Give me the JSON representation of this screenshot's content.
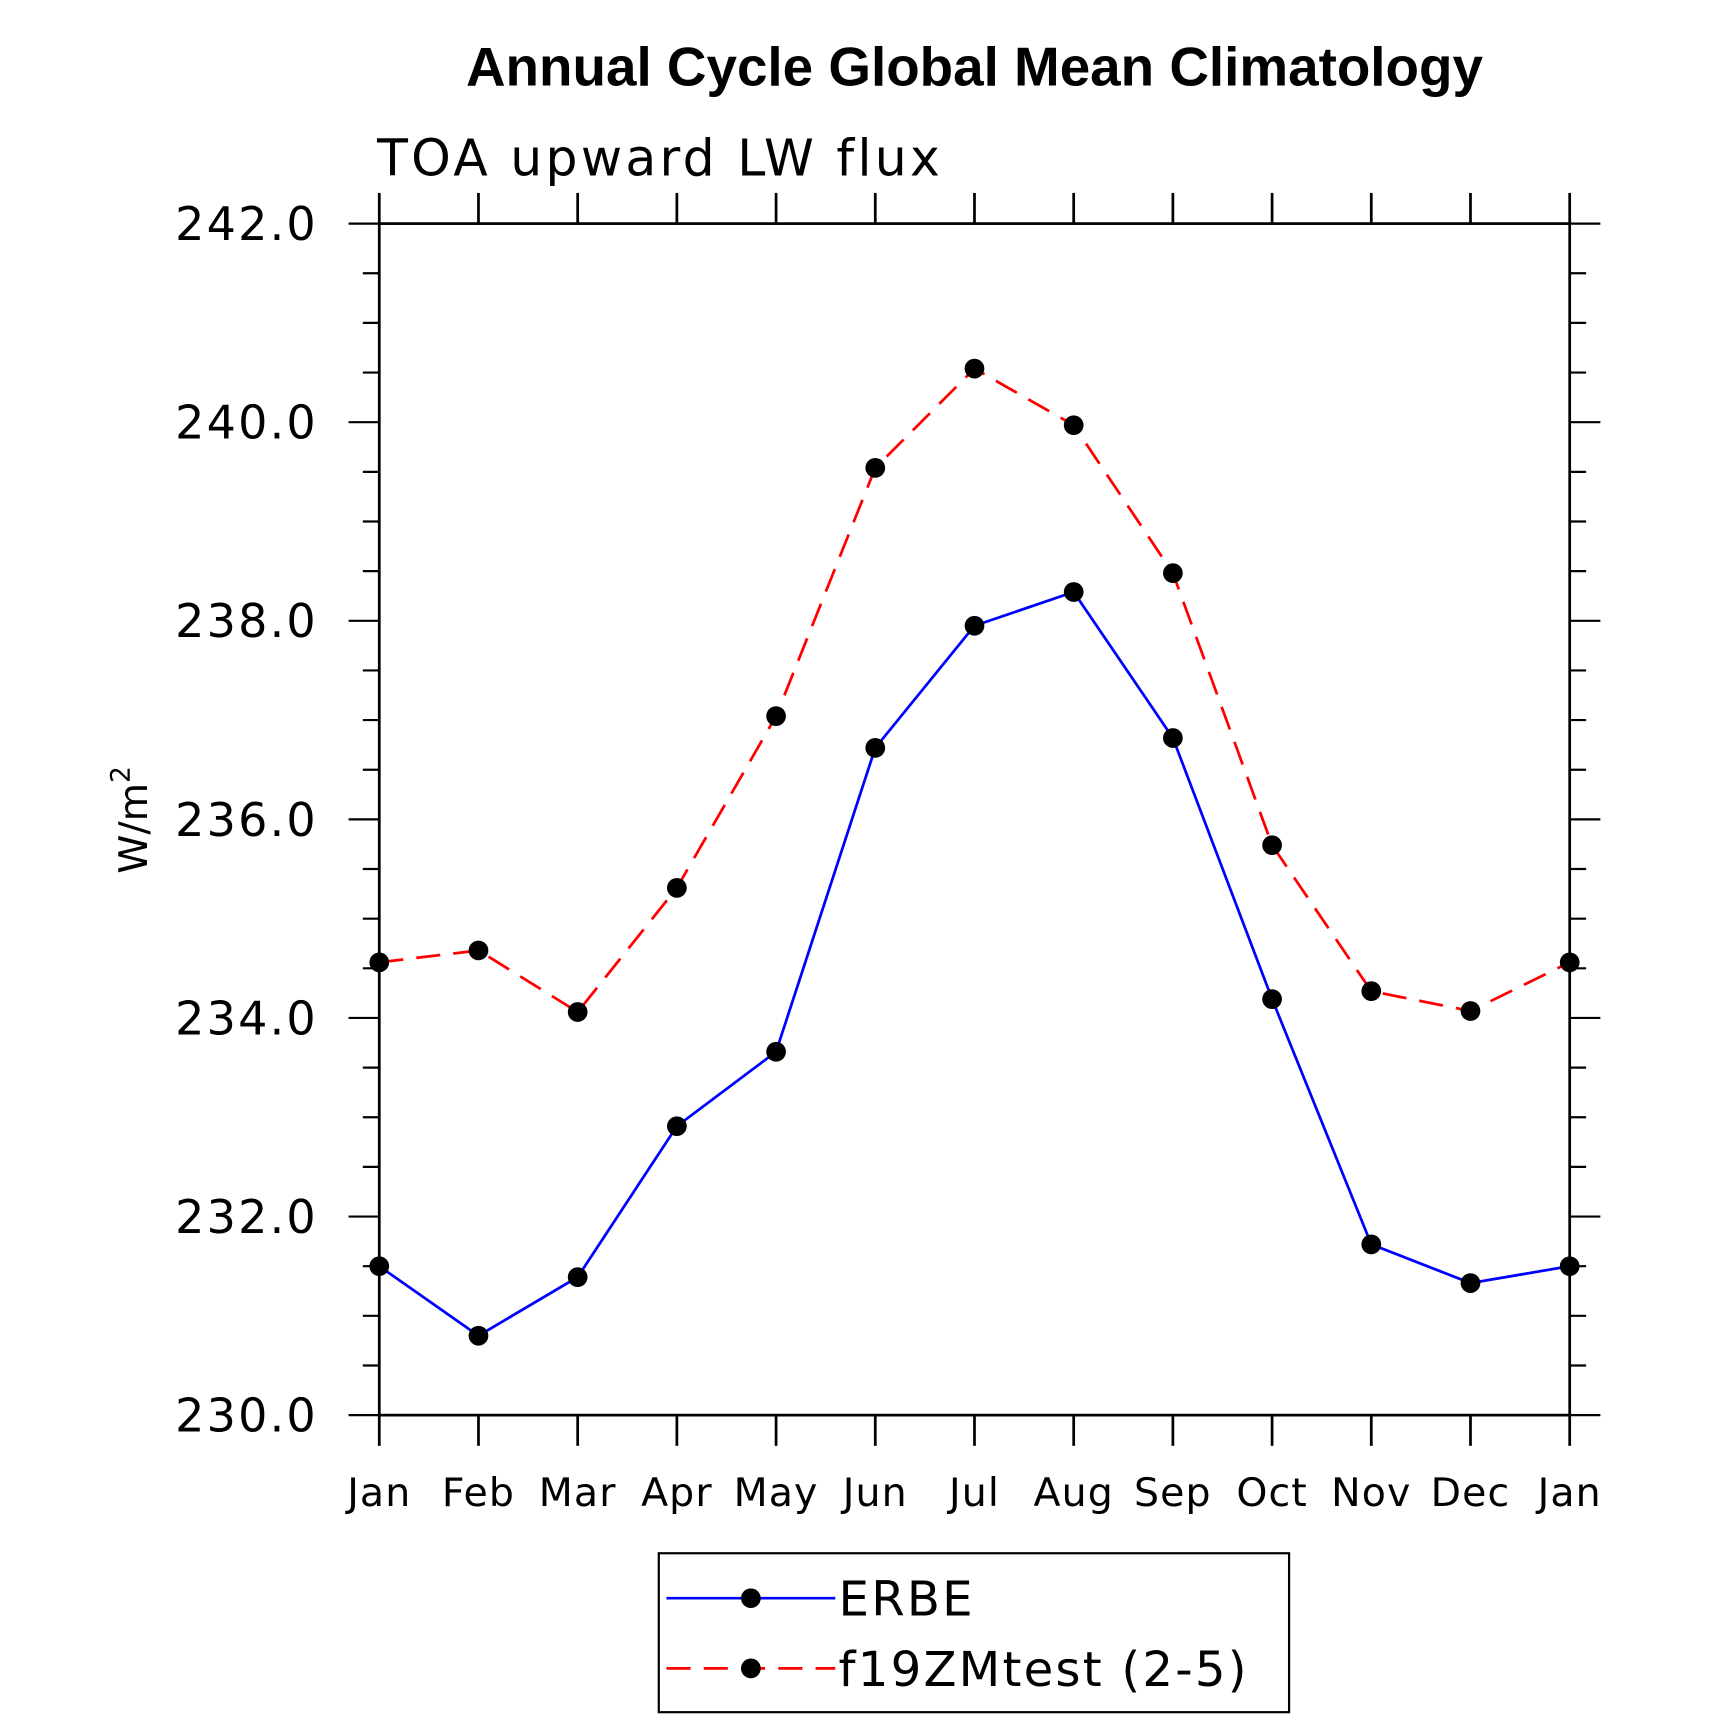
{
  "chart_data": {
    "type": "line",
    "title": "Annual Cycle Global Mean Climatology",
    "subtitle": "TOA upward LW flux",
    "xlabel": "",
    "ylabel": "W/m",
    "ylabel_superscript": "2",
    "categories": [
      "Jan",
      "Feb",
      "Mar",
      "Apr",
      "May",
      "Jun",
      "Jul",
      "Aug",
      "Sep",
      "Oct",
      "Nov",
      "Dec",
      "Jan"
    ],
    "ylim": [
      230,
      242
    ],
    "yticks": [
      "230.0",
      "232.0",
      "234.0",
      "236.0",
      "238.0",
      "240.0",
      "242.0"
    ],
    "grid": false,
    "legend_placement": "bottom",
    "series": [
      {
        "name": "ERBE",
        "color": "#0000ff",
        "dash": "solid",
        "marker": "filled-circle",
        "values": [
          231.5,
          230.8,
          231.39,
          232.91,
          233.66,
          236.72,
          237.95,
          238.29,
          236.82,
          234.19,
          231.72,
          231.33,
          231.5
        ]
      },
      {
        "name": "f19ZMtest (2-5)",
        "color": "#ff0000",
        "dash": "dashed",
        "marker": "filled-circle",
        "values": [
          234.56,
          234.68,
          234.06,
          235.31,
          237.04,
          239.54,
          240.54,
          239.97,
          238.48,
          235.74,
          234.27,
          234.07,
          234.56
        ]
      }
    ]
  }
}
